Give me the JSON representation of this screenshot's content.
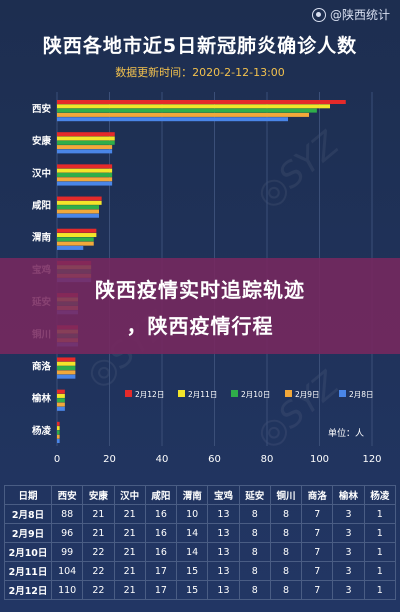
{
  "brand": {
    "name": "@陕西统计",
    "icon": "weibo-icon"
  },
  "title": "陕西各地市近5日新冠肺炎确诊人数",
  "update_time": "数据更新时间：2020-2-12-13:00",
  "overlay": {
    "line1": "陕西疫情实时追踪轨迹",
    "line2": "，陕西疫情行程"
  },
  "chart_data": {
    "type": "bar",
    "orientation": "horizontal",
    "categories": [
      "西安",
      "安康",
      "汉中",
      "咸阳",
      "渭南",
      "宝鸡",
      "延安",
      "铜川",
      "商洛",
      "榆林",
      "杨凌"
    ],
    "series": [
      {
        "name": "2月12日",
        "color": "#e52a2a",
        "values": [
          110,
          22,
          21,
          17,
          15,
          13,
          8,
          8,
          7,
          3,
          1
        ]
      },
      {
        "name": "2月11日",
        "color": "#f3e52a",
        "values": [
          104,
          22,
          21,
          17,
          15,
          13,
          8,
          8,
          7,
          3,
          1
        ]
      },
      {
        "name": "2月10日",
        "color": "#2fae4a",
        "values": [
          99,
          22,
          21,
          16,
          14,
          13,
          8,
          8,
          7,
          3,
          1
        ]
      },
      {
        "name": "2月9日",
        "color": "#f2a83a",
        "values": [
          96,
          21,
          21,
          16,
          14,
          13,
          8,
          8,
          7,
          3,
          1
        ]
      },
      {
        "name": "2月8日",
        "color": "#4a86e8",
        "values": [
          88,
          21,
          21,
          16,
          10,
          13,
          8,
          8,
          7,
          3,
          1
        ]
      }
    ],
    "xlim": [
      0,
      120
    ],
    "xticks": [
      "0",
      "20",
      "40",
      "60",
      "80",
      "100",
      "120"
    ],
    "unit_label": "单位：人",
    "legend_position": "bottom-right"
  },
  "table": {
    "headers": [
      "日期",
      "西安",
      "安康",
      "汉中",
      "咸阳",
      "渭南",
      "宝鸡",
      "延安",
      "铜川",
      "商洛",
      "榆林",
      "杨凌"
    ],
    "rows": [
      [
        "2月8日",
        "88",
        "21",
        "21",
        "16",
        "10",
        "13",
        "8",
        "8",
        "7",
        "3",
        "1"
      ],
      [
        "2月9日",
        "96",
        "21",
        "21",
        "16",
        "14",
        "13",
        "8",
        "8",
        "7",
        "3",
        "1"
      ],
      [
        "2月10日",
        "99",
        "22",
        "21",
        "16",
        "14",
        "13",
        "8",
        "8",
        "7",
        "3",
        "1"
      ],
      [
        "2月11日",
        "104",
        "22",
        "21",
        "17",
        "15",
        "13",
        "8",
        "8",
        "7",
        "3",
        "1"
      ],
      [
        "2月12日",
        "110",
        "22",
        "21",
        "17",
        "15",
        "13",
        "8",
        "8",
        "7",
        "3",
        "1"
      ]
    ]
  }
}
